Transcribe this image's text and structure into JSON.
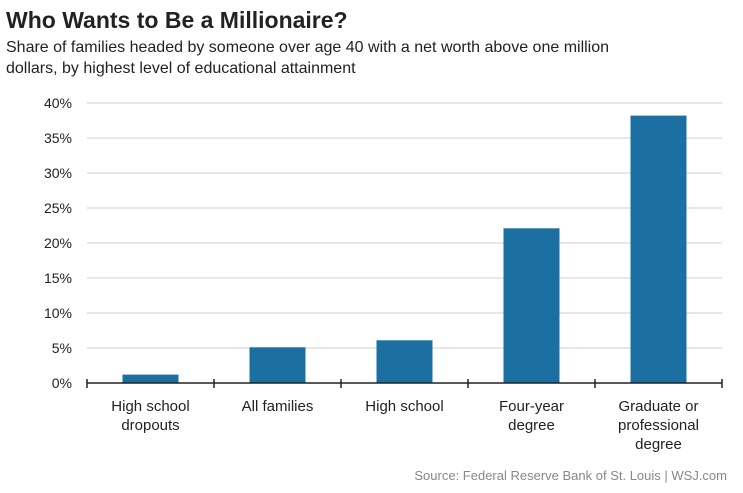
{
  "chart_data": {
    "type": "bar",
    "title": "Who Wants to Be a Millionaire?",
    "subtitle": [
      "Share of families headed by someone over age 40 with a net worth above one million",
      "dollars, by highest level of educational attainment"
    ],
    "categories": [
      "High school\ndropouts",
      "All families",
      "High school",
      "Four-year\ndegree",
      "Graduate or\nprofessional\ndegree"
    ],
    "values": [
      1.2,
      5.1,
      6.1,
      22.1,
      38.2
    ],
    "color": "#1c6fa1",
    "ylim": [
      0,
      40
    ],
    "yticks": [
      {
        "value": 0,
        "label": "0%"
      },
      {
        "value": 5,
        "label": "5%"
      },
      {
        "value": 10,
        "label": "10%"
      },
      {
        "value": 15,
        "label": "15%"
      },
      {
        "value": 20,
        "label": "20%"
      },
      {
        "value": 25,
        "label": "25%"
      },
      {
        "value": 30,
        "label": "30%"
      },
      {
        "value": 35,
        "label": "35%"
      },
      {
        "value": 40,
        "label": "40%"
      }
    ],
    "grid": true,
    "source": "Source: Federal Reserve Bank of St. Louis  |  WSJ.com"
  }
}
